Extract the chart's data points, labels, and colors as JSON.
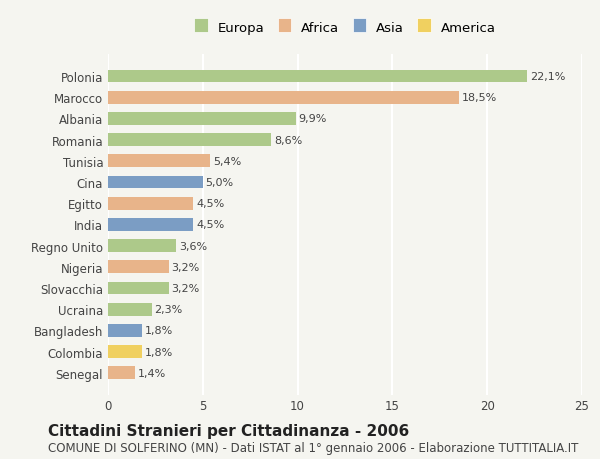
{
  "countries": [
    "Polonia",
    "Marocco",
    "Albania",
    "Romania",
    "Tunisia",
    "Cina",
    "Egitto",
    "India",
    "Regno Unito",
    "Nigeria",
    "Slovacchia",
    "Ucraina",
    "Bangladesh",
    "Colombia",
    "Senegal"
  ],
  "values": [
    22.1,
    18.5,
    9.9,
    8.6,
    5.4,
    5.0,
    4.5,
    4.5,
    3.6,
    3.2,
    3.2,
    2.3,
    1.8,
    1.8,
    1.4
  ],
  "labels": [
    "22,1%",
    "18,5%",
    "9,9%",
    "8,6%",
    "5,4%",
    "5,0%",
    "4,5%",
    "4,5%",
    "3,6%",
    "3,2%",
    "3,2%",
    "2,3%",
    "1,8%",
    "1,8%",
    "1,4%"
  ],
  "continents": [
    "Europa",
    "Africa",
    "Europa",
    "Europa",
    "Africa",
    "Asia",
    "Africa",
    "Asia",
    "Europa",
    "Africa",
    "Europa",
    "Europa",
    "Asia",
    "America",
    "Africa"
  ],
  "colors": {
    "Europa": "#adc98a",
    "Africa": "#e8b48a",
    "Asia": "#7b9dc4",
    "America": "#f0d060"
  },
  "legend_order": [
    "Europa",
    "Africa",
    "Asia",
    "America"
  ],
  "xlim": [
    0,
    25
  ],
  "xticks": [
    0,
    5,
    10,
    15,
    20,
    25
  ],
  "title": "Cittadini Stranieri per Cittadinanza - 2006",
  "subtitle": "COMUNE DI SOLFERINO (MN) - Dati ISTAT al 1° gennaio 2006 - Elaborazione TUTTITALIA.IT",
  "background_color": "#f5f5f0",
  "grid_color": "#ffffff",
  "bar_height": 0.6,
  "title_fontsize": 11,
  "subtitle_fontsize": 8.5,
  "label_fontsize": 8,
  "tick_fontsize": 8.5
}
